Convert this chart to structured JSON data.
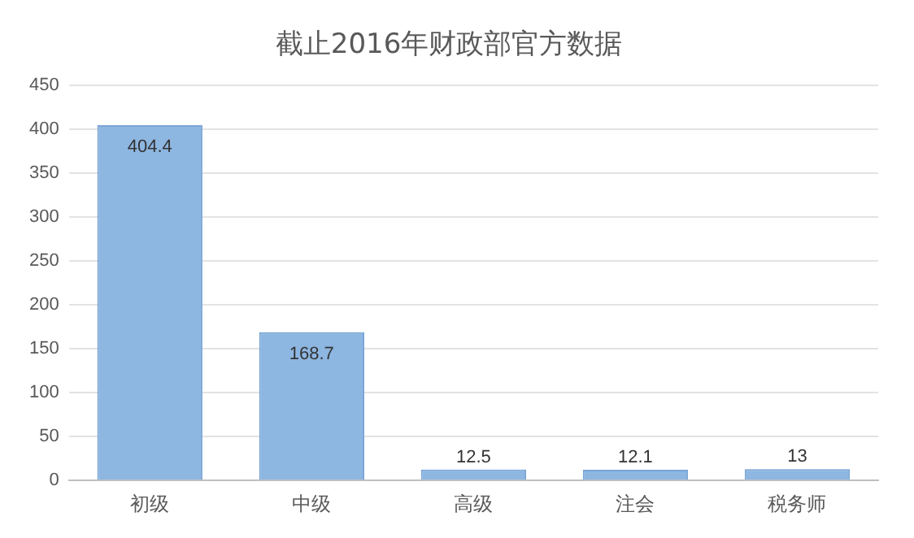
{
  "chart_data": {
    "type": "bar",
    "title": "截止2016年财政部官方数据",
    "categories": [
      "初级",
      "中级",
      "高级",
      "注会",
      "税务师"
    ],
    "values": [
      404.4,
      168.7,
      12.5,
      12.1,
      13
    ],
    "color": "#8db6e1",
    "ylim": [
      0,
      450
    ],
    "yticks": [
      0,
      50,
      100,
      150,
      200,
      250,
      300,
      350,
      400,
      450
    ],
    "grid": "y",
    "data_labels": true
  }
}
